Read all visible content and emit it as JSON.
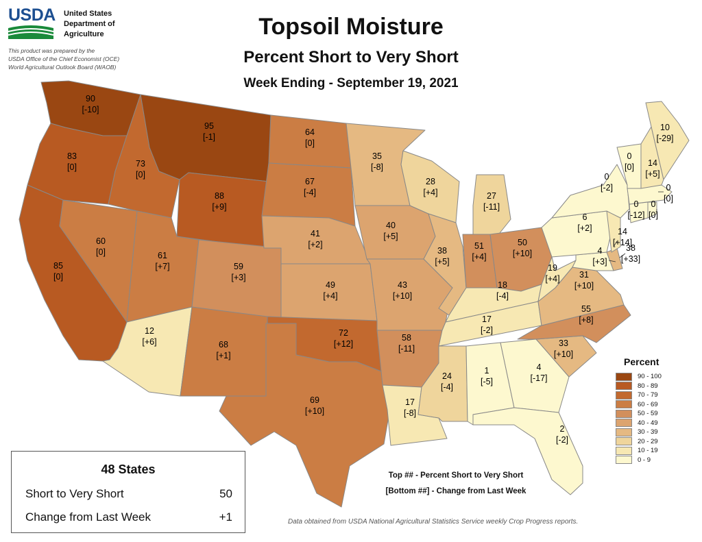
{
  "agency": {
    "logo_text": "USDA",
    "name_lines": [
      "United States",
      "Department of",
      "Agriculture"
    ],
    "credit_lines": [
      "This product was prepared by the",
      "USDA Office of the Chief Economist (OCE)",
      "World Agricultural Outlook Board (WAOB)"
    ]
  },
  "title": "Topsoil Moisture",
  "subtitle": "Percent Short to Very Short",
  "week": "Week Ending - September 19, 2021",
  "legend": {
    "title": "Percent",
    "items": [
      {
        "range": "90 - 100",
        "color": "#9a4712"
      },
      {
        "range": "80 - 89",
        "color": "#b85a22"
      },
      {
        "range": "70 - 79",
        "color": "#c2692f"
      },
      {
        "range": "60 - 69",
        "color": "#cb7d44"
      },
      {
        "range": "50 - 59",
        "color": "#d28f5c"
      },
      {
        "range": "40 - 49",
        "color": "#dca46f"
      },
      {
        "range": "30 - 39",
        "color": "#e5b982"
      },
      {
        "range": "20 - 29",
        "color": "#efd59c"
      },
      {
        "range": "10 - 19",
        "color": "#f7e8b3"
      },
      {
        "range": "0 - 9",
        "color": "#fdf8cf"
      }
    ]
  },
  "states": {
    "WA": {
      "value": "90",
      "change": "[-10]"
    },
    "OR": {
      "value": "83",
      "change": "[0]"
    },
    "CA": {
      "value": "85",
      "change": "[0]"
    },
    "ID": {
      "value": "73",
      "change": "[0]"
    },
    "NV": {
      "value": "60",
      "change": "[0]"
    },
    "MT": {
      "value": "95",
      "change": "[-1]"
    },
    "WY": {
      "value": "88",
      "change": "[+9]"
    },
    "UT": {
      "value": "61",
      "change": "[+7]"
    },
    "AZ": {
      "value": "12",
      "change": "[+6]"
    },
    "CO": {
      "value": "59",
      "change": "[+3]"
    },
    "NM": {
      "value": "68",
      "change": "[+1]"
    },
    "ND": {
      "value": "64",
      "change": "[0]"
    },
    "SD": {
      "value": "67",
      "change": "[-4]"
    },
    "NE": {
      "value": "41",
      "change": "[+2]"
    },
    "KS": {
      "value": "49",
      "change": "[+4]"
    },
    "OK": {
      "value": "72",
      "change": "[+12]"
    },
    "TX": {
      "value": "69",
      "change": "[+10]"
    },
    "MN": {
      "value": "35",
      "change": "[-8]"
    },
    "IA": {
      "value": "40",
      "change": "[+5]"
    },
    "MO": {
      "value": "43",
      "change": "[+10]"
    },
    "AR": {
      "value": "58",
      "change": "[-11]"
    },
    "LA": {
      "value": "17",
      "change": "[-8]"
    },
    "WI": {
      "value": "28",
      "change": "[+4]"
    },
    "IL": {
      "value": "38",
      "change": "[+5]"
    },
    "MI": {
      "value": "27",
      "change": "[-11]"
    },
    "IN": {
      "value": "51",
      "change": "[+4]"
    },
    "OH": {
      "value": "50",
      "change": "[+10]"
    },
    "KY": {
      "value": "18",
      "change": "[-4]"
    },
    "TN": {
      "value": "17",
      "change": "[-2]"
    },
    "MS": {
      "value": "24",
      "change": "[-4]"
    },
    "AL": {
      "value": "1",
      "change": "[-5]"
    },
    "GA": {
      "value": "4",
      "change": "[-17]"
    },
    "FL": {
      "value": "2",
      "change": "[-2]"
    },
    "SC": {
      "value": "33",
      "change": "[+10]"
    },
    "NC": {
      "value": "55",
      "change": "[+8]"
    },
    "VA": {
      "value": "31",
      "change": "[+10]"
    },
    "WV": {
      "value": "19",
      "change": "[+4]"
    },
    "MD": {
      "value": "4",
      "change": "[+3]"
    },
    "DE": {
      "value": "38",
      "change": "[+33]"
    },
    "PA": {
      "value": "6",
      "change": "[+2]"
    },
    "NJ": {
      "value": "14",
      "change": "[+14]"
    },
    "NY": {
      "value": "0",
      "change": "[-2]"
    },
    "CT": {
      "value": "0",
      "change": "[-12]"
    },
    "RI": {
      "value": "0",
      "change": "[0]"
    },
    "MA": {
      "value": "0",
      "change": "[0]"
    },
    "VT": {
      "value": "0",
      "change": "[0]"
    },
    "NH": {
      "value": "14",
      "change": "[+5]"
    },
    "ME": {
      "value": "10",
      "change": "[-29]"
    }
  },
  "summary": {
    "title": "48 States",
    "short_label": "Short to Very Short",
    "short_value": "50",
    "change_label": "Change from Last Week",
    "change_value": "+1"
  },
  "notes": {
    "top": "Top ## - Percent Short to Very Short",
    "bottom": "[Bottom ##] - Change from Last Week"
  },
  "source": "Data obtained from USDA National Agricultural Statistics Service weekly Crop Progress reports."
}
